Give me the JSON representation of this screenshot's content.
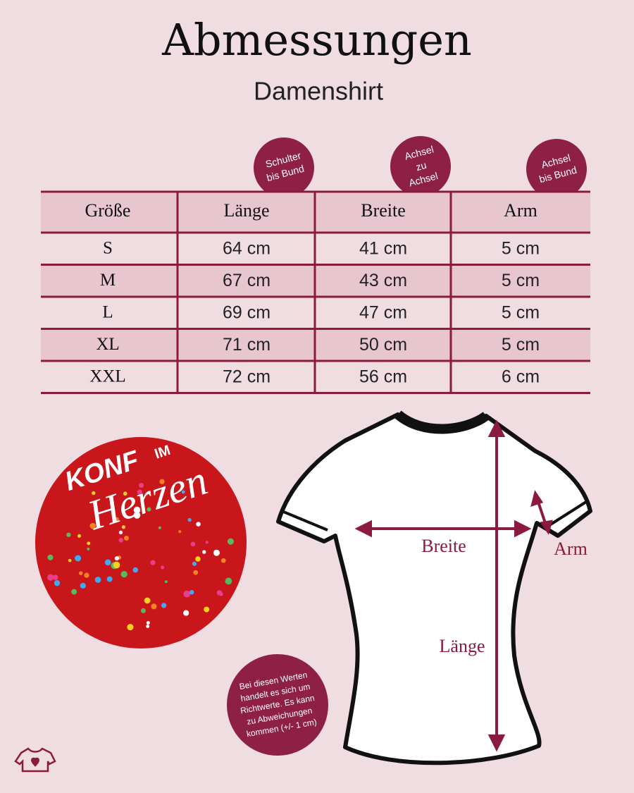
{
  "header": {
    "title": "Abmessungen",
    "subtitle": "Damenshirt"
  },
  "badges": [
    {
      "lines": [
        "Schulter",
        "bis Bund"
      ]
    },
    {
      "lines": [
        "Achsel",
        "zu",
        "Achsel"
      ]
    },
    {
      "lines": [
        "Achsel",
        "bis Bund"
      ]
    }
  ],
  "table": {
    "columns": [
      "Größe",
      "Länge",
      "Breite",
      "Arm"
    ],
    "rows": [
      [
        "S",
        "64 cm",
        "41 cm",
        "5 cm"
      ],
      [
        "M",
        "67 cm",
        "43 cm",
        "5 cm"
      ],
      [
        "L",
        "69 cm",
        "47 cm",
        "5 cm"
      ],
      [
        "XL",
        "71 cm",
        "50 cm",
        "5 cm"
      ],
      [
        "XXL",
        "72 cm",
        "56 cm",
        "6 cm"
      ]
    ]
  },
  "artwork": {
    "lines": [
      "KONF",
      "IM",
      "Herzen"
    ]
  },
  "diagram": {
    "width_label": "Breite",
    "arm_label": "Arm",
    "length_label": "Länge"
  },
  "note": {
    "lines": [
      "Bei diesen Werten",
      "handelt es sich um",
      "Richtwerte. Es kann",
      "zu Abweichungen",
      "kommen (+/- 1 cm)"
    ]
  }
}
